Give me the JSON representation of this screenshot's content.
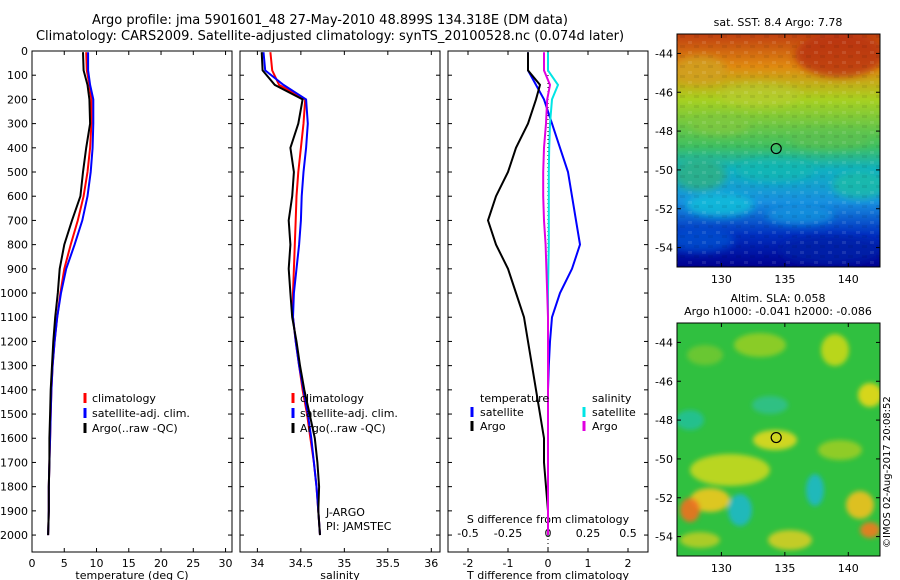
{
  "figure": {
    "title_line1": "Argo profile: jma 5901601_48 27-May-2010 48.899S 134.318E (DM data)",
    "title_line2": "Climatology: CARS2009. Satellite-adjusted climatology: synTS_20100528.nc (0.074d later)",
    "credit": "©IMOS 02-Aug-2017 20:08:52",
    "institution_line1": "J-ARGO",
    "institution_line2": "PI: JAMSTEC"
  },
  "chart_data": [
    {
      "id": "temperature",
      "type": "line",
      "xlabel": "temperature (deg C)",
      "ylabel": "",
      "xlim": [
        0,
        31
      ],
      "ylim": [
        2070,
        0
      ],
      "xticks": [
        0,
        5,
        10,
        15,
        20,
        25,
        30
      ],
      "yticks": [
        0,
        100,
        200,
        300,
        400,
        500,
        600,
        700,
        800,
        900,
        1000,
        1100,
        1200,
        1300,
        1400,
        1500,
        1600,
        1700,
        1800,
        1900,
        2000
      ],
      "legend": [
        "climatology",
        "satellite-adj. clim.",
        "Argo(..raw -QC)"
      ],
      "legend_position": "lower-right",
      "series": [
        {
          "name": "climatology",
          "color": "#ff0000",
          "x": [
            8.4,
            8.5,
            8.9,
            9.2,
            9.2,
            9.0,
            8.6,
            8.0,
            7.1,
            6.0,
            5.0,
            4.4,
            3.9,
            3.5,
            3.2,
            3.0,
            2.9,
            2.8,
            2.7,
            2.6,
            2.6,
            2.5
          ],
          "y": [
            5,
            80,
            140,
            200,
            300,
            400,
            500,
            600,
            700,
            800,
            900,
            1000,
            1100,
            1200,
            1300,
            1400,
            1500,
            1600,
            1700,
            1800,
            1900,
            2000
          ]
        },
        {
          "name": "satellite-adj. clim.",
          "color": "#0000ff",
          "x": [
            8.7,
            8.7,
            9.0,
            9.5,
            9.5,
            9.4,
            9.1,
            8.6,
            7.8,
            6.6,
            5.3,
            4.5,
            3.9,
            3.5,
            3.2,
            3.0,
            2.9,
            2.8,
            2.7,
            2.6,
            2.6,
            2.5
          ],
          "y": [
            5,
            80,
            140,
            200,
            300,
            400,
            500,
            600,
            700,
            800,
            900,
            1000,
            1100,
            1200,
            1300,
            1400,
            1500,
            1600,
            1700,
            1800,
            1900,
            2000
          ]
        },
        {
          "name": "Argo(..raw -QC)",
          "color": "#000000",
          "x": [
            7.9,
            8.0,
            8.6,
            8.9,
            9.0,
            8.4,
            7.9,
            7.5,
            6.2,
            5.0,
            4.3,
            4.0,
            3.6,
            3.3,
            3.1,
            2.9,
            2.8,
            2.7,
            2.7,
            2.6,
            2.6,
            2.5
          ],
          "y": [
            5,
            80,
            140,
            200,
            300,
            400,
            500,
            600,
            700,
            800,
            900,
            1000,
            1100,
            1200,
            1300,
            1400,
            1500,
            1600,
            1700,
            1800,
            1900,
            2000
          ]
        }
      ]
    },
    {
      "id": "salinity",
      "type": "line",
      "xlabel": "salinity",
      "ylabel": "",
      "xlim": [
        33.8,
        36.1
      ],
      "ylim": [
        2070,
        0
      ],
      "xticks": [
        34,
        34.5,
        35,
        35.5,
        36
      ],
      "legend": [
        "climatology",
        "satellite-adj. clim.",
        "Argo(..raw -QC)"
      ],
      "legend_position": "lower-right",
      "series": [
        {
          "name": "climatology",
          "color": "#ff0000",
          "x": [
            34.15,
            34.17,
            34.25,
            34.55,
            34.53,
            34.5,
            34.47,
            34.45,
            34.44,
            34.43,
            34.42,
            34.41,
            34.41,
            34.44,
            34.48,
            34.52,
            34.57,
            34.61,
            34.65,
            34.68,
            34.7,
            34.72
          ],
          "y": [
            5,
            80,
            140,
            200,
            300,
            400,
            500,
            600,
            700,
            800,
            900,
            1000,
            1100,
            1200,
            1300,
            1400,
            1500,
            1600,
            1700,
            1800,
            1900,
            2000
          ]
        },
        {
          "name": "satellite-adj. clim.",
          "color": "#0000ff",
          "x": [
            34.07,
            34.09,
            34.3,
            34.56,
            34.58,
            34.56,
            34.53,
            34.51,
            34.5,
            34.48,
            34.45,
            34.42,
            34.41,
            34.44,
            34.48,
            34.53,
            34.58,
            34.62,
            34.65,
            34.68,
            34.7,
            34.72
          ],
          "y": [
            5,
            80,
            140,
            200,
            300,
            400,
            500,
            600,
            700,
            800,
            900,
            1000,
            1100,
            1200,
            1300,
            1400,
            1500,
            1600,
            1700,
            1800,
            1900,
            2000
          ]
        },
        {
          "name": "Argo(..raw -QC)",
          "color": "#000000",
          "x": [
            34.05,
            34.06,
            34.2,
            34.52,
            34.47,
            34.38,
            34.42,
            34.4,
            34.36,
            34.38,
            34.36,
            34.38,
            34.4,
            34.45,
            34.49,
            34.54,
            34.6,
            34.66,
            34.69,
            34.71,
            34.7,
            34.72
          ],
          "y": [
            5,
            80,
            140,
            200,
            300,
            400,
            500,
            600,
            700,
            800,
            900,
            1000,
            1100,
            1200,
            1300,
            1400,
            1500,
            1600,
            1700,
            1800,
            1900,
            2000
          ]
        }
      ]
    },
    {
      "id": "difference",
      "type": "line",
      "xlabel": "T difference from climatology",
      "xlabel_top": "S difference from climatology",
      "ylabel": "",
      "xlim": [
        -2.5,
        2.5
      ],
      "ylim": [
        2070,
        0
      ],
      "xticks": [
        -2,
        -1,
        0,
        1,
        2
      ],
      "s_axis_ticks": [
        "-0.5",
        "-0.25",
        "0",
        "0.25",
        "0.5"
      ],
      "legend_headers": [
        "temperature",
        "salinity"
      ],
      "legend": [
        "satellite",
        "Argo",
        "satellite",
        "Argo"
      ],
      "legend_position": "lower-center",
      "series": [
        {
          "name": "satellite",
          "group": "temperature",
          "color": "#0000ff",
          "x": [
            -0.5,
            -0.5,
            -0.3,
            -0.1,
            0.1,
            0.3,
            0.5,
            0.6,
            0.7,
            0.8,
            0.6,
            0.3,
            0.1,
            0.05,
            0.02,
            0.0,
            0.0,
            0.0,
            0.0,
            0.0,
            0.0,
            0.0
          ],
          "y": [
            5,
            80,
            140,
            200,
            300,
            400,
            500,
            600,
            700,
            800,
            900,
            1000,
            1100,
            1200,
            1300,
            1400,
            1500,
            1600,
            1700,
            1800,
            1900,
            2000
          ]
        },
        {
          "name": "Argo",
          "group": "temperature",
          "color": "#000000",
          "x": [
            -0.5,
            -0.5,
            -0.2,
            -0.3,
            -0.5,
            -0.8,
            -1.0,
            -1.3,
            -1.5,
            -1.3,
            -1.0,
            -0.8,
            -0.6,
            -0.5,
            -0.4,
            -0.3,
            -0.2,
            -0.1,
            -0.1,
            -0.05,
            0.0,
            0.0
          ],
          "y": [
            5,
            80,
            140,
            200,
            300,
            400,
            500,
            600,
            700,
            800,
            900,
            1000,
            1100,
            1200,
            1300,
            1400,
            1500,
            1600,
            1700,
            1800,
            1900,
            2000
          ]
        },
        {
          "name": "satellite",
          "group": "salinity",
          "color": "#00e5e5",
          "x": [
            0.0,
            0.0,
            0.25,
            0.1,
            0.05,
            0.03,
            0.02,
            0.02,
            0.02,
            0.02,
            0.01,
            0.0,
            0.0,
            0.0,
            0.0,
            0.0,
            0.0,
            0.0,
            0.0,
            0.0,
            0.0,
            0.0
          ],
          "y": [
            5,
            80,
            140,
            200,
            300,
            400,
            500,
            600,
            700,
            800,
            900,
            1000,
            1100,
            1200,
            1300,
            1400,
            1500,
            1600,
            1700,
            1800,
            1900,
            2000
          ]
        },
        {
          "name": "Argo",
          "group": "salinity",
          "color": "#e000e0",
          "x": [
            -0.1,
            -0.1,
            0.05,
            -0.02,
            -0.05,
            -0.1,
            -0.12,
            -0.12,
            -0.1,
            -0.06,
            -0.04,
            -0.02,
            0.0,
            0.0,
            0.0,
            0.0,
            0.0,
            0.0,
            0.0,
            0.0,
            0.0,
            0.0
          ],
          "y": [
            5,
            80,
            140,
            200,
            300,
            400,
            500,
            600,
            700,
            800,
            900,
            1000,
            1100,
            1200,
            1300,
            1400,
            1500,
            1600,
            1700,
            1800,
            1900,
            2000
          ]
        }
      ]
    },
    {
      "id": "sst_map",
      "type": "heatmap",
      "title": "sat. SST: 8.4  Argo: 7.78",
      "xlim": [
        126.5,
        142.5
      ],
      "ylim": [
        -55,
        -43
      ],
      "xticks": [
        130,
        135,
        140
      ],
      "yticks": [
        -44,
        -46,
        -48,
        -50,
        -52,
        -54
      ],
      "marker": {
        "lon": 134.318,
        "lat": -48.899
      }
    },
    {
      "id": "sla_map",
      "type": "heatmap",
      "title": "Altim. SLA: 0.058",
      "title_line2": "Argo h1000: -0.041 h2000: -0.086",
      "xlim": [
        126.5,
        142.5
      ],
      "ylim": [
        -55,
        -43
      ],
      "xticks": [
        130,
        135,
        140
      ],
      "yticks": [
        -44,
        -46,
        -48,
        -50,
        -52,
        -54
      ],
      "marker": {
        "lon": 134.318,
        "lat": -48.899
      }
    }
  ]
}
